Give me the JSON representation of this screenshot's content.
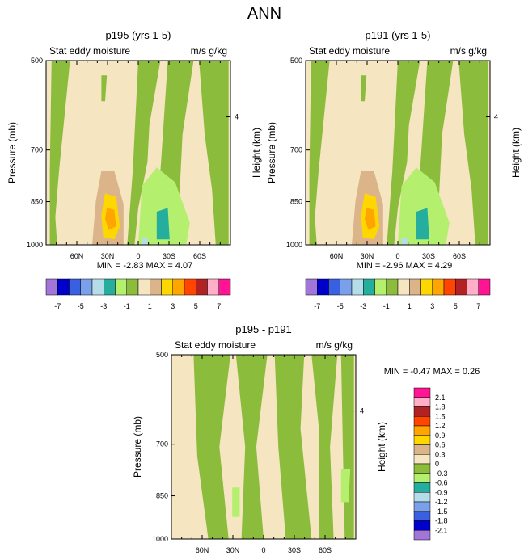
{
  "figure_title": "ANN",
  "chart_data": [
    {
      "type": "heatmap",
      "title": "p195 (yrs 1-5)",
      "left_label": "Stat eddy moisture",
      "right_label": "m/s g/kg",
      "ylabel": "Pressure (mb)",
      "right_ylabel": "Height (km)",
      "y_ticks": [
        "500",
        "700",
        "850",
        "1000"
      ],
      "right_ticks": [
        "4"
      ],
      "x_ticks": [
        "60N",
        "30N",
        "0",
        "30S",
        "60S"
      ],
      "stats": {
        "min_label": "MIN =",
        "min": "-2.83",
        "max_label": "MAX =",
        "max": "4.07"
      },
      "colorbar": {
        "labels": [
          "-7",
          "-5",
          "-3",
          "-1",
          "1",
          "3",
          "5",
          "7"
        ],
        "colors": [
          "#a276d9",
          "#0000cd",
          "#3a5fe0",
          "#7aa0ea",
          "#b4dde9",
          "#25ae9d",
          "#b4f06e",
          "#8cbc3c",
          "#f5e5c0",
          "#dbb48a",
          "#ffd700",
          "#ffa500",
          "#ff4500",
          "#b22222",
          "#ffb0c8",
          "#ff1493"
        ]
      }
    },
    {
      "type": "heatmap",
      "title": "p191 (yrs 1-5)",
      "left_label": "Stat eddy moisture",
      "right_label": "m/s g/kg",
      "ylabel": "Pressure (mb)",
      "right_ylabel": "Height (km)",
      "y_ticks": [
        "500",
        "700",
        "850",
        "1000"
      ],
      "right_ticks": [
        "4"
      ],
      "x_ticks": [
        "60N",
        "30N",
        "0",
        "30S",
        "60S"
      ],
      "stats": {
        "min_label": "MIN =",
        "min": "-2.96",
        "max_label": "MAX =",
        "max": "4.29"
      },
      "colorbar": {
        "labels": [
          "-7",
          "-5",
          "-3",
          "-1",
          "1",
          "3",
          "5",
          "7"
        ]
      }
    },
    {
      "type": "heatmap",
      "title": "p195 - p191",
      "left_label": "Stat eddy moisture",
      "right_label": "m/s g/kg",
      "ylabel": "Pressure (mb)",
      "right_ylabel": "Height (km)",
      "y_ticks": [
        "500",
        "700",
        "850",
        "1000"
      ],
      "right_ticks": [
        "4"
      ],
      "x_ticks": [
        "60N",
        "30N",
        "0",
        "30S",
        "60S"
      ],
      "stats": {
        "min_label": "MIN =",
        "min": "-0.47",
        "max_label": "MAX =",
        "max": "0.26"
      },
      "colorbar": {
        "labels": [
          "2.1",
          "1.8",
          "1.5",
          "1.2",
          "0.9",
          "0.6",
          "0.3",
          "0",
          "-0.3",
          "-0.6",
          "-0.9",
          "-1.2",
          "-1.5",
          "-1.8",
          "-2.1"
        ],
        "colors": [
          "#ff1493",
          "#ffb0c8",
          "#b22222",
          "#ff4500",
          "#ffa500",
          "#ffd700",
          "#dbb48a",
          "#f5e5c0",
          "#8cbc3c",
          "#b4f06e",
          "#25ae9d",
          "#b4dde9",
          "#7aa0ea",
          "#3a5fe0",
          "#0000cd",
          "#a276d9"
        ]
      }
    }
  ]
}
